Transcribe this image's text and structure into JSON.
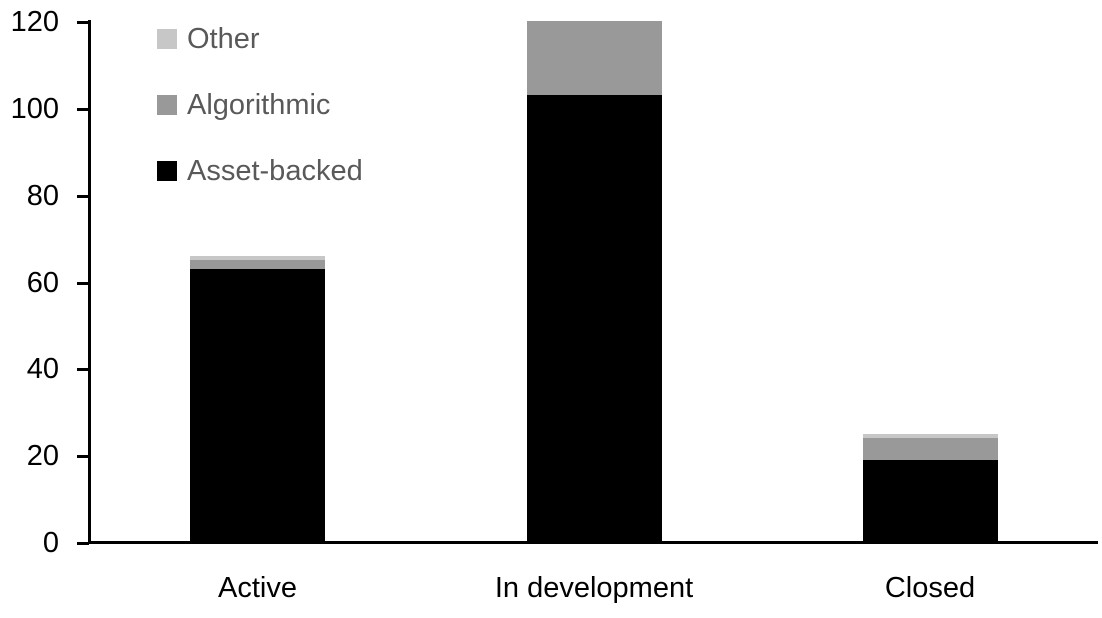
{
  "chart_data": {
    "type": "bar",
    "stacked": true,
    "title": "",
    "xlabel": "",
    "ylabel": "",
    "categories": [
      "Active",
      "In development",
      "Closed"
    ],
    "series": [
      {
        "name": "Asset-backed",
        "color": "#000000",
        "values": [
          63,
          103,
          19
        ]
      },
      {
        "name": "Algorithmic",
        "color": "#999999",
        "values": [
          2,
          17,
          5
        ]
      },
      {
        "name": "Other",
        "color": "#c7c7c7",
        "values": [
          1,
          0,
          1
        ]
      }
    ],
    "totals": [
      66,
      120,
      25
    ],
    "yticks": [
      0,
      20,
      40,
      60,
      80,
      100,
      120
    ],
    "ylim": [
      0,
      120
    ],
    "grid": false,
    "legend": {
      "position": "top-left",
      "order": [
        "Other",
        "Algorithmic",
        "Asset-backed"
      ],
      "text_color": "#595959"
    },
    "axis_color": "#000000",
    "tick_label_color": "#000000",
    "category_label_color": "#000000"
  }
}
